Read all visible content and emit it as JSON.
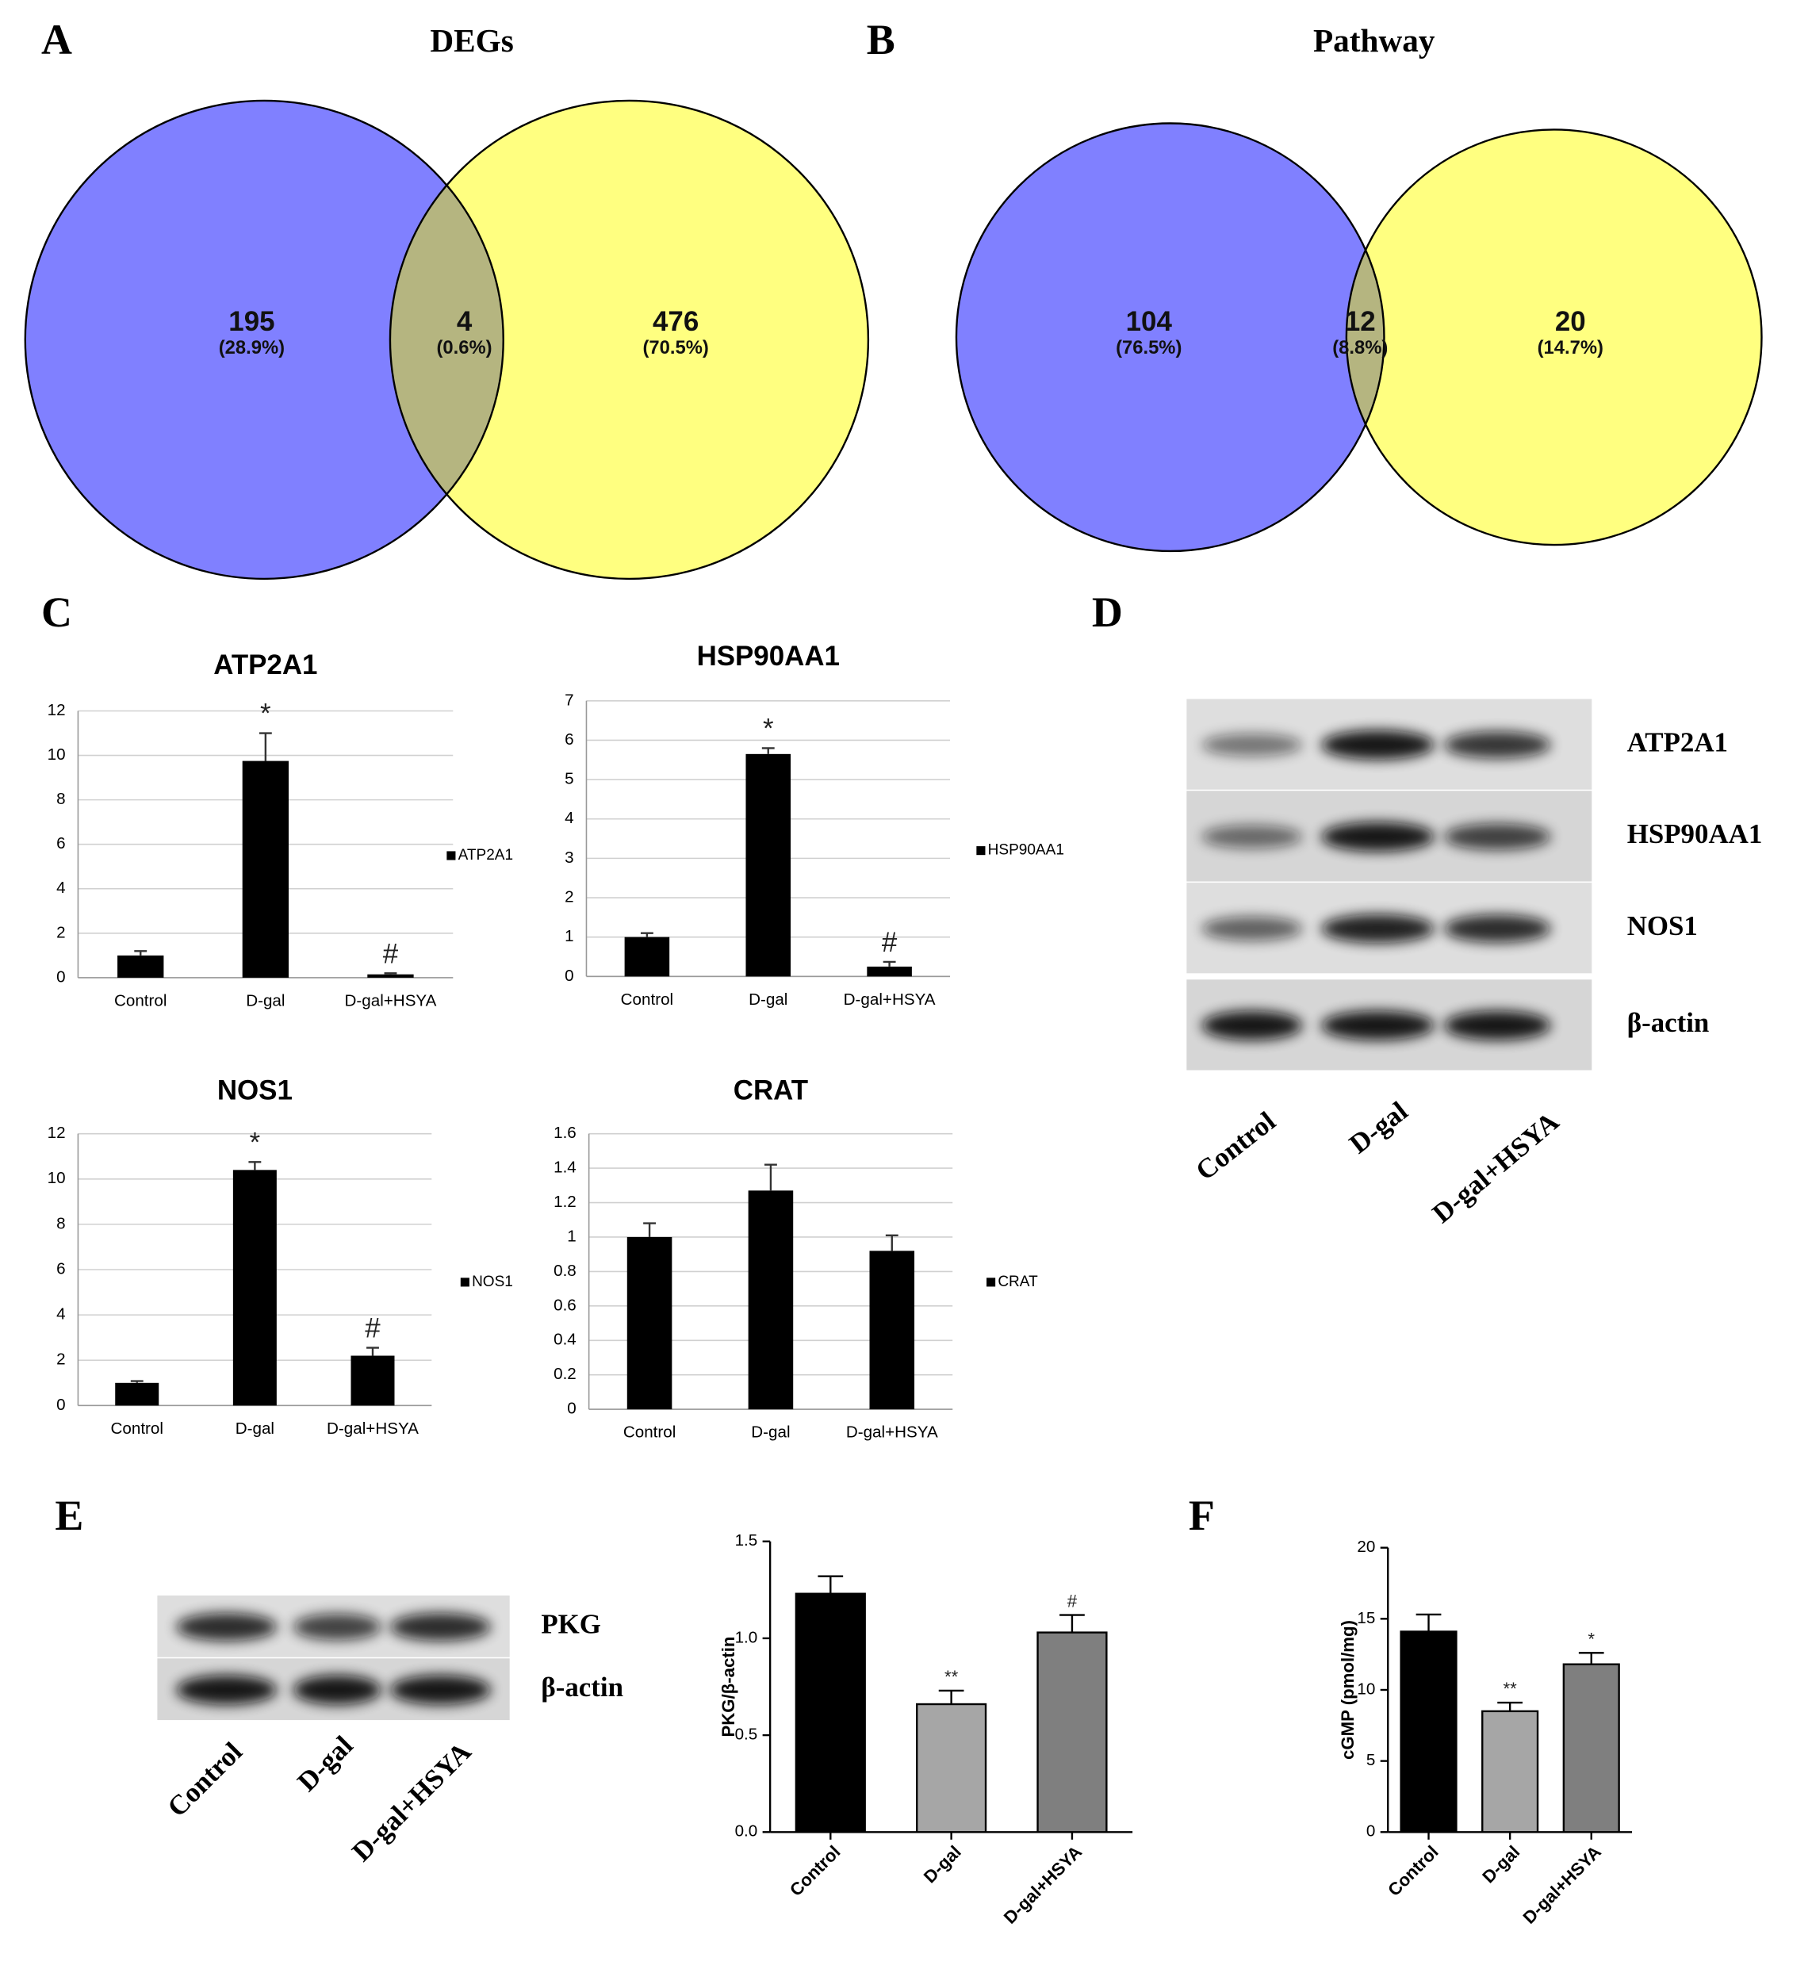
{
  "panels": [
    "A",
    "B",
    "C",
    "D",
    "E",
    "F"
  ],
  "chart_data": [
    {
      "type": "venn",
      "title": "DEGs",
      "values": [
        195,
        4,
        476
      ],
      "shares": [
        28.9,
        0.6,
        70.5
      ],
      "share_labels": [
        "(28.9%)",
        "(0.6%)",
        "(70.5%)"
      ],
      "colors": [
        "#8080ff",
        "#ffff80"
      ],
      "overlap_color": "#b5b580"
    },
    {
      "type": "venn",
      "title": "Pathway",
      "values": [
        104,
        12,
        20
      ],
      "shares": [
        76.5,
        8.8,
        14.7
      ],
      "share_labels": [
        "(76.5%)",
        "(8.8%)",
        "(14.7%)"
      ],
      "colors": [
        "#8080ff",
        "#ffff80"
      ],
      "overlap_color": "#b5b580"
    },
    {
      "type": "bar",
      "title": "ATP2A1",
      "categories": [
        "Control",
        "D-gal",
        "D-gal+HSYA"
      ],
      "series": [
        {
          "name": "ATP2A1",
          "color": "#000000",
          "values": [
            1.0,
            9.75,
            0.15
          ],
          "errors": [
            0.2,
            1.25,
            0.05
          ]
        }
      ],
      "annotations": [
        null,
        "*",
        "#"
      ],
      "ylim": [
        0,
        12
      ],
      "yticks": [
        0,
        2,
        4,
        6,
        8,
        10,
        12
      ],
      "grid": true
    },
    {
      "type": "bar",
      "title": "HSP90AA1",
      "categories": [
        "Control",
        "D-gal",
        "D-gal+HSYA"
      ],
      "series": [
        {
          "name": "HSP90AA1",
          "color": "#000000",
          "values": [
            1.0,
            5.65,
            0.25
          ],
          "errors": [
            0.1,
            0.15,
            0.12
          ]
        }
      ],
      "annotations": [
        null,
        "*",
        "#"
      ],
      "ylim": [
        0,
        7
      ],
      "yticks": [
        0,
        1,
        2,
        3,
        4,
        5,
        6,
        7
      ],
      "grid": true
    },
    {
      "type": "bar",
      "title": "NOS1",
      "categories": [
        "Control",
        "D-gal",
        "D-gal+HSYA"
      ],
      "series": [
        {
          "name": "NOS1",
          "color": "#000000",
          "values": [
            1.0,
            10.4,
            2.2
          ],
          "errors": [
            0.08,
            0.35,
            0.35
          ]
        }
      ],
      "annotations": [
        null,
        "*",
        "#"
      ],
      "ylim": [
        0,
        12
      ],
      "yticks": [
        0,
        2,
        4,
        6,
        8,
        10,
        12
      ],
      "grid": true
    },
    {
      "type": "bar",
      "title": "CRAT",
      "categories": [
        "Control",
        "D-gal",
        "D-gal+HSYA"
      ],
      "series": [
        {
          "name": "CRAT",
          "color": "#000000",
          "values": [
            1.0,
            1.27,
            0.92
          ],
          "errors": [
            0.08,
            0.15,
            0.09
          ]
        }
      ],
      "ylim": [
        0,
        1.6
      ],
      "yticks": [
        0,
        0.2,
        0.4,
        0.6,
        0.8,
        1,
        1.2,
        1.4,
        1.6
      ],
      "grid": true
    },
    {
      "type": "bar",
      "ylabel": "PKG/β-actin",
      "categories": [
        "Control",
        "D-gal",
        "D-gal+HSYA"
      ],
      "series": [
        {
          "colors": [
            "#000000",
            "#a6a6a6",
            "#7f7f7f"
          ],
          "values": [
            1.23,
            0.66,
            1.03
          ],
          "errors": [
            0.09,
            0.07,
            0.09
          ]
        }
      ],
      "annotations": [
        null,
        "**",
        "#"
      ],
      "ylim": [
        0,
        1.5
      ],
      "yticks": [
        {
          "value": 0,
          "label": "0.0"
        },
        0.5,
        {
          "value": 1,
          "label": "1.0"
        },
        1.5
      ],
      "grid": false
    },
    {
      "type": "bar",
      "ylabel": "cGMP (pmol/mg)",
      "categories": [
        "Control",
        "D-gal",
        "D-gal+HSYA"
      ],
      "series": [
        {
          "colors": [
            "#000000",
            "#a6a6a6",
            "#7f7f7f"
          ],
          "values": [
            14.1,
            8.5,
            11.8
          ],
          "errors": [
            1.2,
            0.6,
            0.8
          ]
        }
      ],
      "annotations": [
        null,
        "**",
        "*"
      ],
      "ylim": [
        0,
        20
      ],
      "yticks": [
        0,
        5,
        10,
        15,
        20
      ],
      "grid": false
    }
  ],
  "blots": [
    {
      "rows": [
        "ATP2A1",
        "HSP90AA1",
        "NOS1",
        "β-actin"
      ],
      "lanes": [
        "Control",
        "D-gal",
        "D-gal+HSYA"
      ]
    },
    {
      "rows": [
        "PKG",
        "β-actin"
      ],
      "lanes": [
        "Control",
        "D-gal",
        "D-gal+HSYA"
      ]
    }
  ]
}
